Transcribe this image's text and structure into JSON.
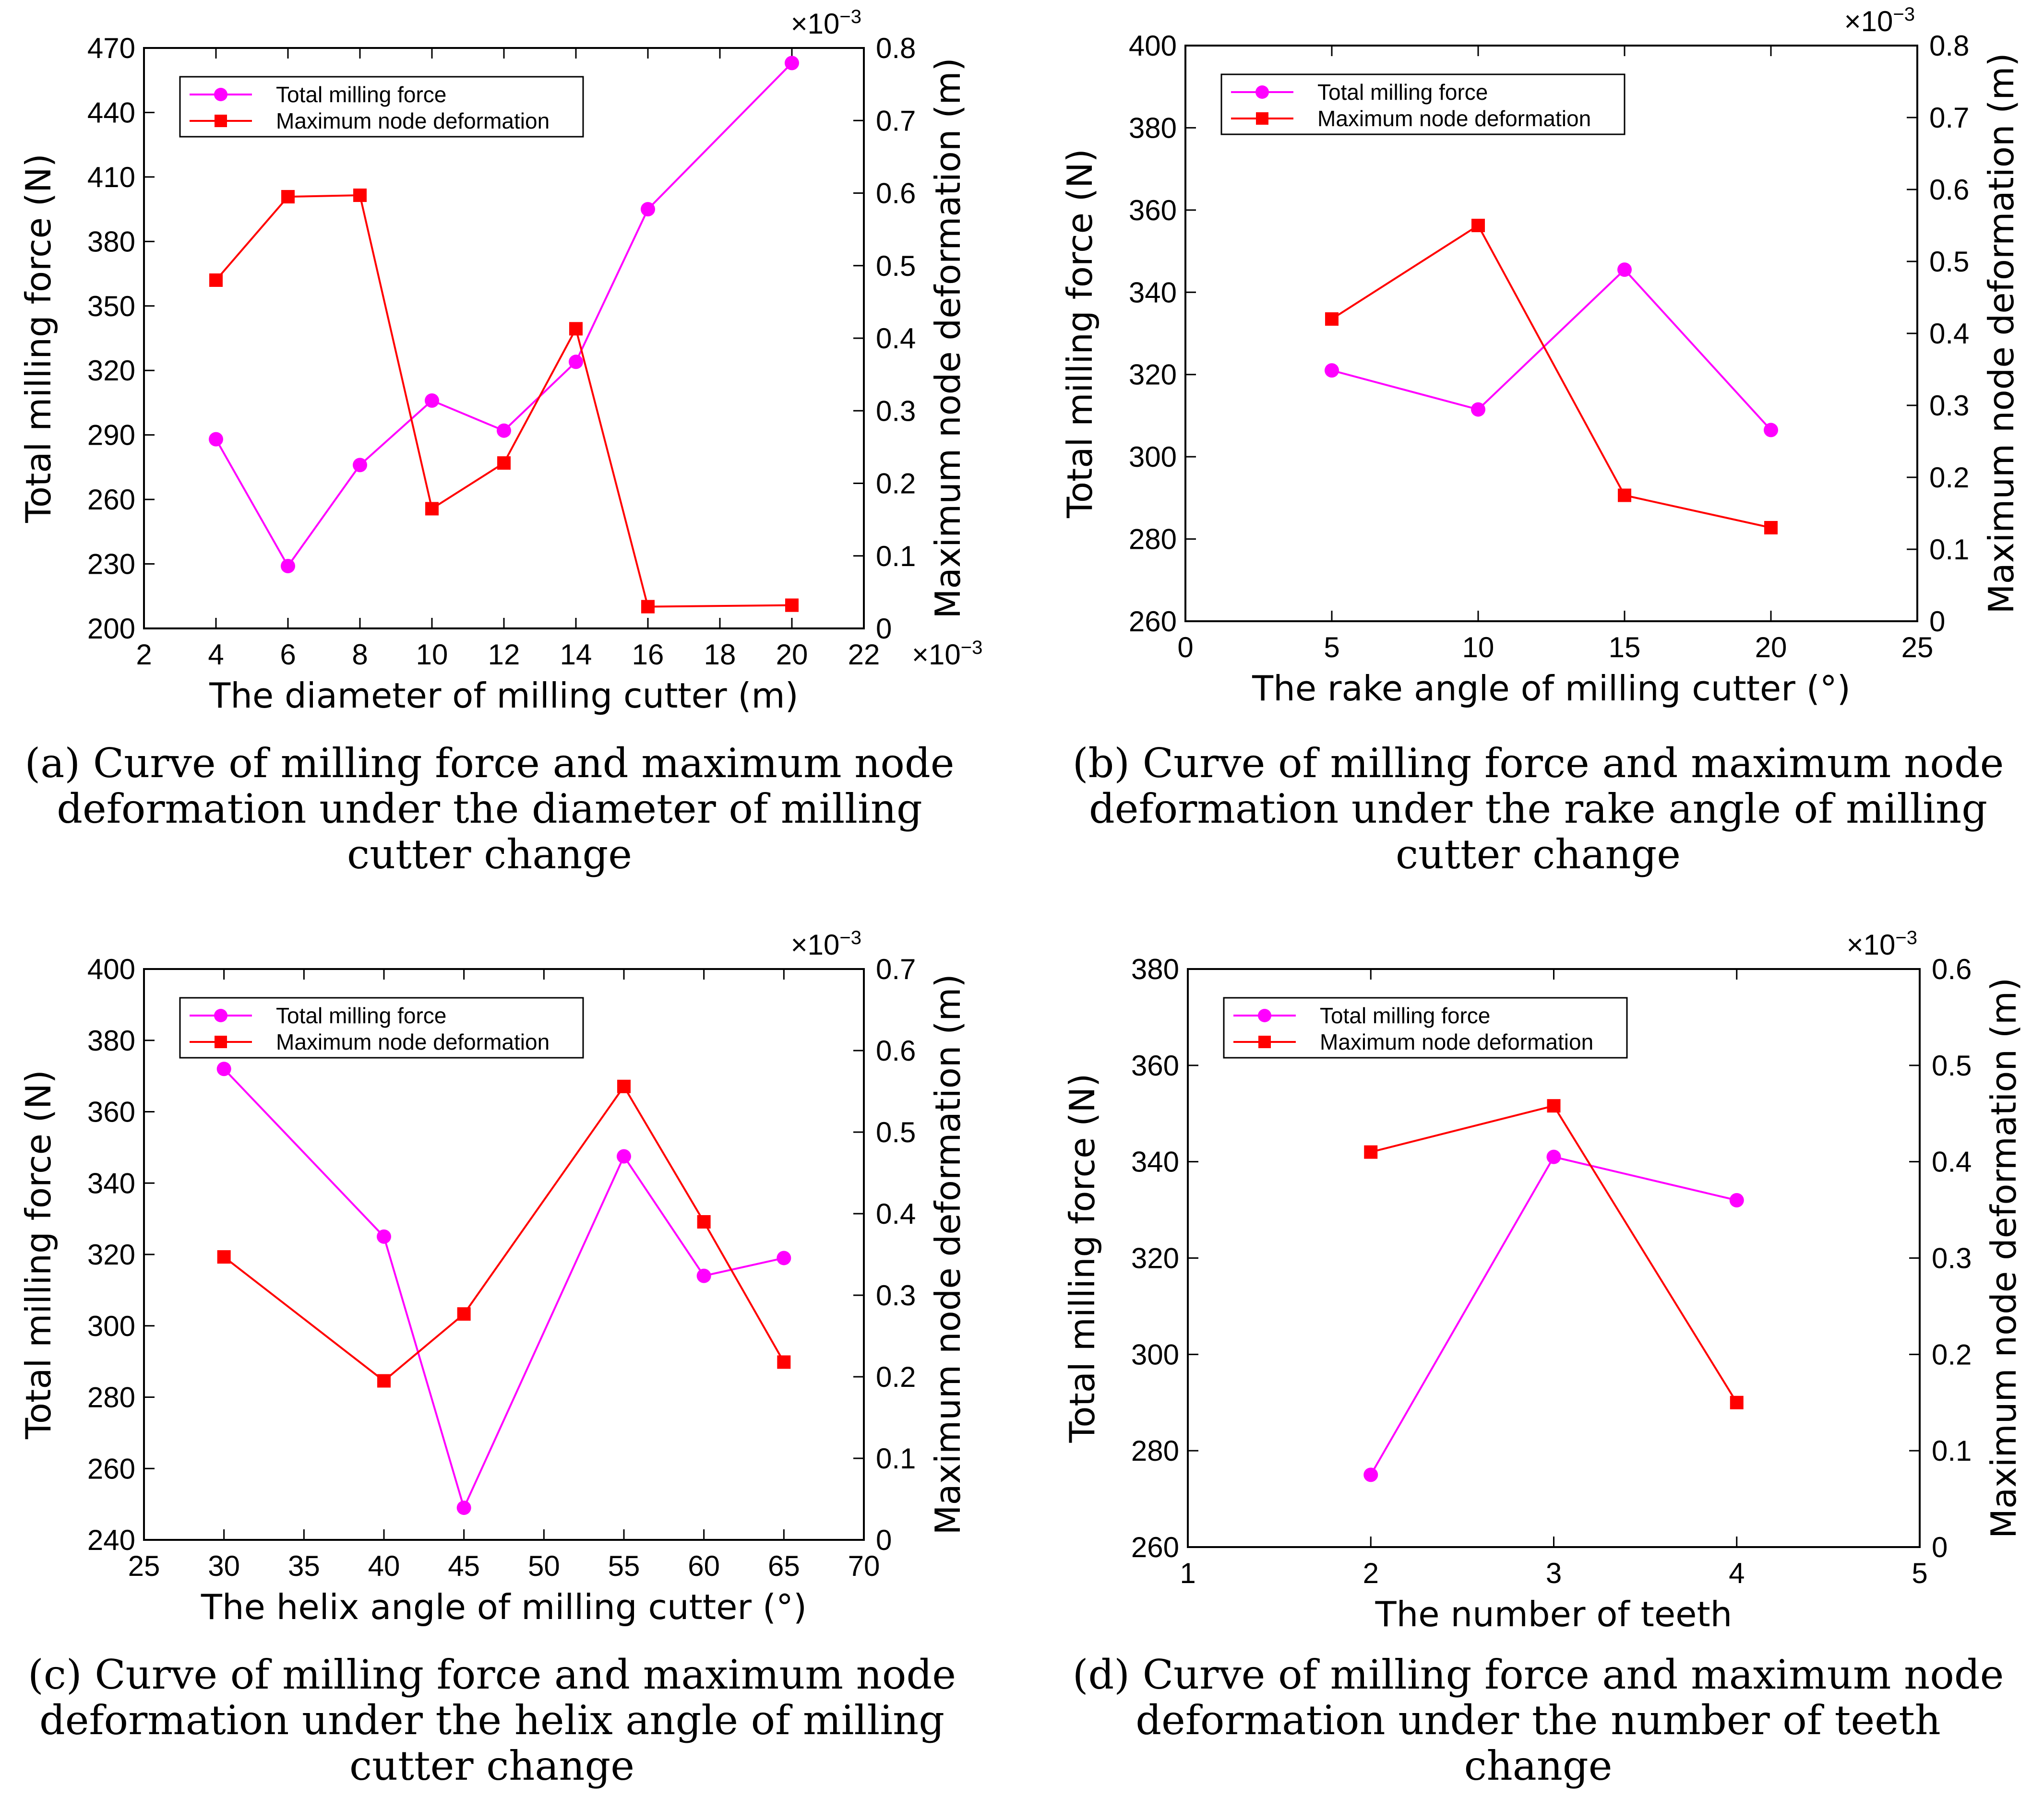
{
  "chart_data": [
    {
      "type": "line",
      "xlabel": "The diameter of milling cutter (m)",
      "ylabel": "Total milling force (N)",
      "y2label": "Maximum node deformation (m)",
      "x_multiplier": "×10",
      "x_multiplier_exp": "−3",
      "y2_multiplier": "×10",
      "y2_multiplier_exp": "−3",
      "xlim": [
        2,
        22
      ],
      "xticks": [
        2,
        4,
        6,
        8,
        10,
        12,
        14,
        16,
        18,
        20,
        22
      ],
      "ylim": [
        200,
        470
      ],
      "yticks": [
        200,
        230,
        260,
        290,
        320,
        350,
        380,
        410,
        440,
        470
      ],
      "y2lim": [
        0,
        0.8
      ],
      "y2ticks": [
        0,
        0.1,
        0.2,
        0.3,
        0.4,
        0.5,
        0.6,
        0.7,
        0.8
      ],
      "legend": "top-left",
      "series": [
        {
          "name": "Total milling force",
          "axis": "left",
          "color": "#ff00ff",
          "marker": "circle",
          "x": [
            4,
            6,
            8,
            10,
            12,
            14,
            16,
            20
          ],
          "values": [
            288,
            229,
            276,
            306,
            292,
            324,
            395,
            463
          ]
        },
        {
          "name": "Maximum node deformation",
          "axis": "right",
          "color": "#ff0000",
          "marker": "square",
          "x": [
            4,
            6,
            8,
            10,
            12,
            14,
            16,
            20
          ],
          "values": [
            0.48,
            0.595,
            0.597,
            0.165,
            0.228,
            0.413,
            0.03,
            0.032
          ]
        }
      ],
      "caption": [
        "(a) Curve of milling force and maximum node",
        "deformation under the diameter of milling",
        "cutter change"
      ]
    },
    {
      "type": "line",
      "xlabel": "The rake angle of milling cutter (°)",
      "ylabel": "Total milling force (N)",
      "y2label": "Maximum node deformation (m)",
      "x_multiplier": "",
      "x_multiplier_exp": "",
      "y2_multiplier": "×10",
      "y2_multiplier_exp": "−3",
      "xlim": [
        0,
        25
      ],
      "xticks": [
        0,
        5,
        10,
        15,
        20,
        25
      ],
      "ylim": [
        260,
        400
      ],
      "yticks": [
        260,
        280,
        300,
        320,
        340,
        360,
        380,
        400
      ],
      "y2lim": [
        0,
        0.8
      ],
      "y2ticks": [
        0,
        0.1,
        0.2,
        0.3,
        0.4,
        0.5,
        0.6,
        0.7,
        0.8
      ],
      "legend": "top-left",
      "series": [
        {
          "name": "Total milling force",
          "axis": "left",
          "color": "#ff00ff",
          "marker": "circle",
          "x": [
            5,
            10,
            15,
            20
          ],
          "values": [
            321,
            311.5,
            345.5,
            306.5
          ]
        },
        {
          "name": "Maximum node deformation",
          "axis": "right",
          "color": "#ff0000",
          "marker": "square",
          "x": [
            5,
            10,
            15,
            20
          ],
          "values": [
            0.42,
            0.55,
            0.175,
            0.13
          ]
        }
      ],
      "caption": [
        "(b) Curve of milling force and maximum node",
        "deformation under the rake angle of milling",
        "cutter change"
      ]
    },
    {
      "type": "line",
      "xlabel": "The helix angle of milling cutter (°)",
      "ylabel": "Total milling force (N)",
      "y2label": "Maximum node deformation (m)",
      "x_multiplier": "",
      "x_multiplier_exp": "",
      "y2_multiplier": "×10",
      "y2_multiplier_exp": "−3",
      "xlim": [
        25,
        70
      ],
      "xticks": [
        25,
        30,
        35,
        40,
        45,
        50,
        55,
        60,
        65,
        70
      ],
      "ylim": [
        240,
        400
      ],
      "yticks": [
        240,
        260,
        280,
        300,
        320,
        340,
        360,
        380,
        400
      ],
      "y2lim": [
        0,
        0.7
      ],
      "y2ticks": [
        0,
        0.1,
        0.2,
        0.3,
        0.4,
        0.5,
        0.6,
        0.7
      ],
      "legend": "top-left",
      "series": [
        {
          "name": "Total milling force",
          "axis": "left",
          "color": "#ff00ff",
          "marker": "circle",
          "x": [
            30,
            40,
            45,
            55,
            60,
            65
          ],
          "values": [
            372,
            325,
            249,
            347.5,
            314,
            319
          ]
        },
        {
          "name": "Maximum node deformation",
          "axis": "right",
          "color": "#ff0000",
          "marker": "square",
          "x": [
            30,
            40,
            45,
            55,
            60,
            65
          ],
          "values": [
            0.347,
            0.195,
            0.277,
            0.556,
            0.39,
            0.218
          ]
        }
      ],
      "caption": [
        "(c) Curve of milling force and maximum node",
        "deformation under the helix angle of milling",
        "cutter change"
      ]
    },
    {
      "type": "line",
      "xlabel": "The number of teeth",
      "ylabel": "Total milling force (N)",
      "y2label": "Maximum node deformation (m)",
      "x_multiplier": "",
      "x_multiplier_exp": "",
      "y2_multiplier": "×10",
      "y2_multiplier_exp": "−3",
      "xlim": [
        1,
        5
      ],
      "xticks": [
        1,
        2,
        3,
        4,
        5
      ],
      "ylim": [
        260,
        380
      ],
      "yticks": [
        260,
        280,
        300,
        320,
        340,
        360,
        380
      ],
      "y2lim": [
        0,
        0.6
      ],
      "y2ticks": [
        0,
        0.1,
        0.2,
        0.3,
        0.4,
        0.5,
        0.6
      ],
      "legend": "top-left",
      "series": [
        {
          "name": "Total milling force",
          "axis": "left",
          "color": "#ff00ff",
          "marker": "circle",
          "x": [
            2,
            3,
            4
          ],
          "values": [
            275,
            341,
            332
          ]
        },
        {
          "name": "Maximum node deformation",
          "axis": "right",
          "color": "#ff0000",
          "marker": "square",
          "x": [
            2,
            3,
            4
          ],
          "values": [
            0.41,
            0.458,
            0.15
          ]
        }
      ],
      "caption": [
        "(d) Curve of milling force and maximum node",
        "deformation under the number of teeth",
        "change"
      ]
    }
  ]
}
